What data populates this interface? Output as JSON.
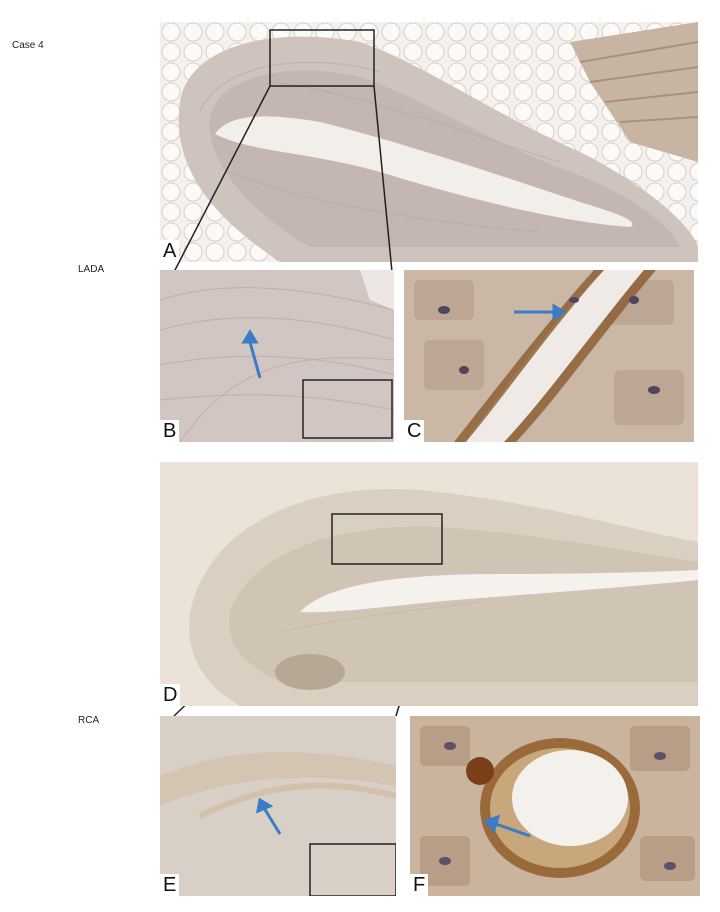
{
  "figure": {
    "case_label": "Case 4",
    "row_labels": {
      "lada": "LADA",
      "rca": "RCA"
    },
    "panels": {
      "a": "A",
      "b": "B",
      "c": "C",
      "d": "D",
      "e": "E",
      "f": "F"
    }
  },
  "colors": {
    "background": "#ffffff",
    "tissue_light": "#dcd3c9",
    "tissue_pink": "#c9bcb6",
    "stain_brown": "#8a5a2e",
    "arrow_blue": "#3a7cc8",
    "frame": "#222222"
  },
  "icons": [
    "arrow-icon"
  ]
}
